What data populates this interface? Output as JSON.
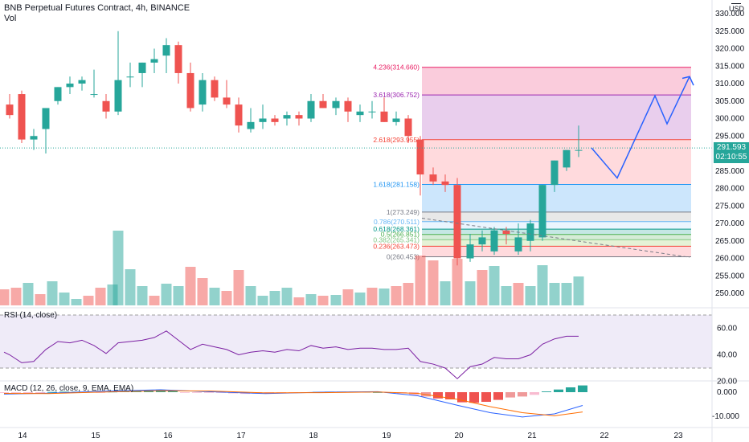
{
  "header": {
    "title": "BNB Perpetual Futures Contract, 4h, BINANCE",
    "vol_label": "Vol",
    "currency": "USD"
  },
  "current_price": {
    "value": "291.593",
    "countdown": "02:10:55"
  },
  "price_axis": {
    "ticks": [
      "330.000",
      "325.000",
      "320.000",
      "315.000",
      "310.000",
      "305.000",
      "300.000",
      "295.000",
      "290.000",
      "285.000",
      "280.000",
      "275.000",
      "270.000",
      "265.000",
      "260.000",
      "255.000",
      "250.000"
    ]
  },
  "time_axis": {
    "ticks": [
      "14",
      "15",
      "16",
      "17",
      "18",
      "19",
      "20",
      "21",
      "22",
      "23"
    ]
  },
  "fib_levels": [
    {
      "label": "4.236(314.660)",
      "color": "#e91e63"
    },
    {
      "label": "3.618(306.752)",
      "color": "#9c27b0"
    },
    {
      "label": "2.618(293.955)",
      "color": "#f44336"
    },
    {
      "label": "1.618(281.158)",
      "color": "#2196f3"
    },
    {
      "label": "1(273.249)",
      "color": "#787b86"
    },
    {
      "label": "0.786(270.511)",
      "color": "#64b5f6"
    },
    {
      "label": "0.618(268.361)",
      "color": "#009688"
    },
    {
      "label": "0.5(266.851)",
      "color": "#4caf50"
    },
    {
      "label": "0.382(265.341)",
      "color": "#81c784"
    },
    {
      "label": "0.236(263.473)",
      "color": "#f44336"
    },
    {
      "label": "0(260.453)",
      "color": "#787b86"
    }
  ],
  "rsi": {
    "title": "RSI (14, close)",
    "ticks": [
      "60.00",
      "40.00",
      "20.00"
    ]
  },
  "macd": {
    "title": "MACD (12, 26, close, 9, EMA, EMA)",
    "ticks": [
      "0.000",
      "-10.000"
    ]
  },
  "colors": {
    "up": "#26a69a",
    "down": "#ef5350",
    "projection": "#2962ff",
    "rsi_line": "#7b1fa2",
    "macd_line": "#2962ff",
    "signal_line": "#ff6d00"
  }
}
